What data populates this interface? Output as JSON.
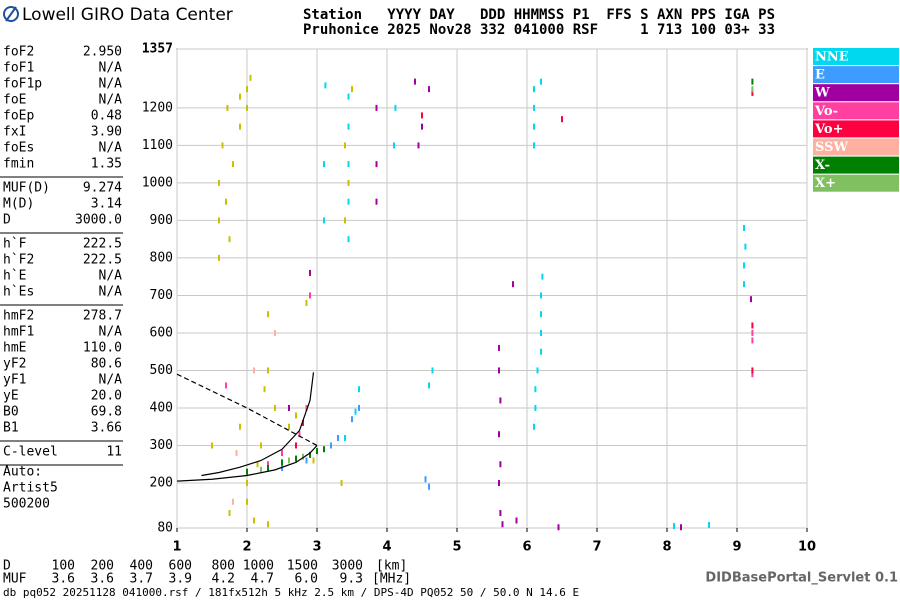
{
  "header": {
    "logo_text": "Lowell GIRO Data Center",
    "row1": "Station   YYYY DAY   DDD HHMMSS P1  FFS S AXN PPS IGA PS",
    "row2": "Pruhonice 2025 Nov28 332 041000 RSF     1 713 100 03+ 33"
  },
  "parameters": [
    [
      {
        "label": "foF2",
        "value": "2.950"
      },
      {
        "label": "foF1",
        "value": "N/A"
      },
      {
        "label": "foF1p",
        "value": "N/A"
      },
      {
        "label": "foE",
        "value": "N/A"
      },
      {
        "label": "foEp",
        "value": "0.48"
      },
      {
        "label": "fxI",
        "value": "3.90"
      },
      {
        "label": "foEs",
        "value": "N/A"
      },
      {
        "label": "fmin",
        "value": "1.35"
      }
    ],
    [
      {
        "label": "MUF(D)",
        "value": "9.274"
      },
      {
        "label": "M(D)",
        "value": "3.14"
      },
      {
        "label": "D",
        "value": "3000.0"
      }
    ],
    [
      {
        "label": "h`F",
        "value": "222.5"
      },
      {
        "label": "h`F2",
        "value": "222.5"
      },
      {
        "label": "h`E",
        "value": "N/A"
      },
      {
        "label": "h`Es",
        "value": "N/A"
      }
    ],
    [
      {
        "label": "hmF2",
        "value": "278.7"
      },
      {
        "label": "hmF1",
        "value": "N/A"
      },
      {
        "label": "hmE",
        "value": "110.0"
      },
      {
        "label": "yF2",
        "value": "80.6"
      },
      {
        "label": "yF1",
        "value": "N/A"
      },
      {
        "label": "yE",
        "value": "20.0"
      },
      {
        "label": "B0",
        "value": "69.8"
      },
      {
        "label": "B1",
        "value": "3.66"
      }
    ],
    [
      {
        "label": "C-level",
        "value": "11"
      }
    ]
  ],
  "autoscaling": [
    "Auto:",
    "Artist5",
    "500200"
  ],
  "muf_table": {
    "d_label": "D",
    "d_values": [
      "100",
      "200",
      "400",
      "600",
      "800",
      "1000",
      "1500",
      "3000"
    ],
    "d_unit": "[km]",
    "muf_label": "MUF",
    "muf_values": [
      "3.6",
      "3.6",
      "3.7",
      "3.9",
      "4.2",
      "4.7",
      "6.0",
      "9.3"
    ],
    "muf_unit": "[MHz]"
  },
  "footer": "db pq052 20251128 041000.rsf / 181fx512h 5 kHz 2.5 km / DPS-4D PQ052 50 / 50.0 N 14.6 E",
  "servlet": "DIDBasePortal_Servlet 0.1",
  "chart_data": {
    "type": "scatter",
    "xlim": [
      1,
      10
    ],
    "xticks": [
      1,
      2,
      3,
      4,
      5,
      6,
      7,
      8,
      9,
      10
    ],
    "ylim": [
      80,
      1357
    ],
    "yticks": [
      80,
      200,
      300,
      400,
      500,
      600,
      700,
      800,
      900,
      1000,
      1100,
      1200,
      1357
    ],
    "grid": true,
    "series": [
      {
        "color": "#c8c000",
        "x": [
          1.6,
          1.6,
          1.6,
          1.65,
          1.7,
          1.72,
          1.75,
          1.8,
          1.9,
          2.0,
          2.0,
          2.05,
          1.9,
          2.3,
          2.3,
          2.25,
          2.2,
          2.15,
          2.0,
          2.0,
          1.75,
          2.1,
          2.3,
          2.6,
          2.4,
          3.4,
          3.45,
          3.4,
          3.5,
          2.85,
          2.7,
          1.9,
          1.5,
          3.35,
          2.95
        ],
        "values": [
          1000,
          900,
          800,
          1100,
          950,
          1200,
          850,
          1050,
          1150,
          1250,
          1200,
          1280,
          1230,
          650,
          500,
          450,
          300,
          250,
          200,
          150,
          120,
          100,
          90,
          350,
          400,
          1100,
          1000,
          900,
          1250,
          680,
          380,
          350,
          300,
          200,
          260
        ]
      },
      {
        "name": "NNE",
        "color": "#00d8f0",
        "x": [
          6.1,
          6.12,
          6.12,
          6.15,
          6.2,
          6.2,
          6.2,
          6.2,
          6.22,
          6.1,
          6.1,
          6.1,
          6.1,
          6.2,
          9.1,
          9.1,
          9.12,
          9.1,
          3.45,
          3.45,
          3.45,
          3.45,
          3.45,
          3.12,
          3.1,
          3.1,
          4.12,
          4.1,
          4.6,
          4.65,
          3.6,
          3.55,
          3.4,
          8.1,
          8.6
        ],
        "values": [
          350,
          400,
          450,
          500,
          550,
          600,
          650,
          700,
          750,
          1100,
          1150,
          1200,
          1250,
          1270,
          730,
          780,
          830,
          880,
          850,
          950,
          1050,
          1150,
          1230,
          1260,
          1050,
          900,
          1200,
          1100,
          460,
          500,
          450,
          390,
          320,
          85,
          88
        ]
      },
      {
        "name": "E",
        "color": "#3c9cff",
        "x": [
          3.6,
          3.5,
          3.3,
          3.2,
          2.85,
          2.5,
          4.55,
          4.6
        ],
        "values": [
          400,
          370,
          320,
          300,
          260,
          240,
          210,
          190
        ]
      },
      {
        "name": "W",
        "color": "#a000a0",
        "x": [
          5.6,
          5.6,
          5.62,
          5.6,
          5.62,
          5.6,
          5.62,
          5.65,
          5.85,
          4.6,
          4.4,
          4.5,
          3.85,
          3.85,
          3.85,
          2.9,
          2.6,
          9.2,
          5.8,
          4.45,
          8.2,
          6.45
        ],
        "values": [
          560,
          500,
          420,
          330,
          250,
          200,
          120,
          90,
          100,
          1250,
          1270,
          1150,
          1200,
          1050,
          950,
          760,
          400,
          690,
          730,
          1100,
          82,
          82
        ]
      },
      {
        "name": "Vo-",
        "color": "#ff40a0",
        "x": [
          2.9,
          2.85,
          2.75,
          2.5,
          2.3,
          2.0,
          1.7,
          9.22,
          9.22,
          9.22
        ],
        "values": [
          700,
          400,
          330,
          280,
          250,
          230,
          460,
          600,
          580,
          490
        ]
      },
      {
        "name": "Vo+",
        "color": "#ff0040",
        "x": [
          9.22,
          9.22,
          9.22,
          4.5,
          6.5,
          2.8,
          2.7
        ],
        "values": [
          1240,
          620,
          500,
          1180,
          1170,
          360,
          300
        ]
      },
      {
        "name": "SSW",
        "color": "#ffb0a0",
        "x": [
          1.8,
          1.85,
          2.1,
          2.4
        ],
        "values": [
          150,
          280,
          500,
          600
        ]
      },
      {
        "name": "X-",
        "color": "#008000",
        "x": [
          3.0,
          2.9,
          2.7,
          2.5,
          2.3,
          2.0,
          9.22,
          3.1
        ],
        "values": [
          285,
          275,
          265,
          255,
          240,
          230,
          1270,
          290
        ]
      },
      {
        "name": "X+",
        "color": "#80c060",
        "x": [
          2.8,
          2.6,
          9.22,
          2.2
        ],
        "values": [
          270,
          260,
          1250,
          235
        ]
      }
    ],
    "traces": [
      {
        "style": "solid",
        "x": [
          1.35,
          1.6,
          1.9,
          2.2,
          2.5,
          2.75,
          2.9,
          2.95
        ],
        "values": [
          220,
          228,
          242,
          260,
          290,
          340,
          420,
          495
        ]
      },
      {
        "style": "solid",
        "x": [
          1.0,
          1.5,
          2.0,
          2.4,
          2.7,
          2.9,
          3.0
        ],
        "values": [
          205,
          210,
          220,
          235,
          255,
          280,
          300
        ]
      },
      {
        "style": "dashed",
        "x": [
          1.0,
          1.5,
          2.0,
          2.5,
          2.8,
          3.0
        ],
        "values": [
          490,
          445,
          400,
          350,
          320,
          300
        ]
      }
    ]
  }
}
